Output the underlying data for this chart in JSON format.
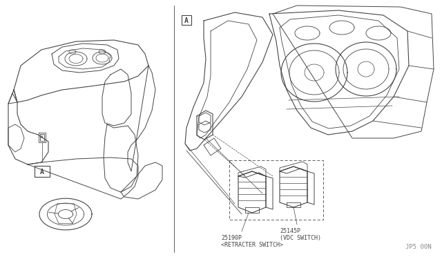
{
  "bg_color": "#ffffff",
  "line_color": "#444444",
  "text_color": "#444444",
  "fig_width": 6.4,
  "fig_height": 3.72,
  "dpi": 100,
  "part1_label": "25190P",
  "part1_sublabel": "<RETRACTER SWITCH>",
  "part2_label": "25145P",
  "part2_sublabel": "(VDC SWITCH)",
  "watermark": "JP5 00N",
  "label_a": "A"
}
